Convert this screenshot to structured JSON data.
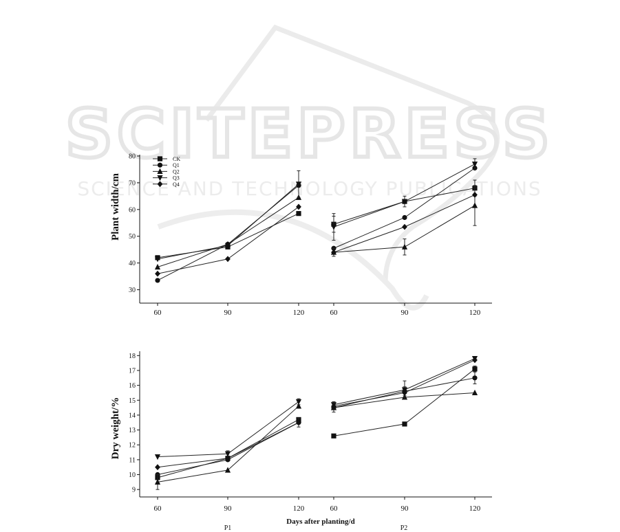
{
  "watermark": {
    "title": "SCITEPRESS",
    "subtitle": "SCIENCE AND TECHNOLOGY PUBLICATIONS"
  },
  "legend": [
    "CK",
    "Q1",
    "Q2",
    "Q3",
    "Q4"
  ],
  "panel_labels": [
    "P1",
    "P2"
  ],
  "x_axis_title": "Days after planting/d",
  "chart_data": [
    {
      "type": "line",
      "ylabel": "Plant width/cm",
      "ylim": [
        25,
        80
      ],
      "yticks": [
        30,
        40,
        50,
        60,
        70,
        80
      ],
      "groups": [
        {
          "name": "P1",
          "x": [
            60,
            90,
            120
          ],
          "series": [
            {
              "name": "CK",
              "marker": "square",
              "values": [
                42.0,
                46.0,
                58.5
              ],
              "errors": [
                0,
                0,
                0
              ]
            },
            {
              "name": "Q1",
              "marker": "circle",
              "values": [
                33.5,
                47.0,
                69.0
              ],
              "errors": [
                0,
                0,
                0
              ]
            },
            {
              "name": "Q2",
              "marker": "triangle",
              "values": [
                38.5,
                47.0,
                64.5
              ],
              "errors": [
                0,
                0,
                0
              ]
            },
            {
              "name": "Q3",
              "marker": "tri-down",
              "values": [
                41.5,
                46.5,
                69.5
              ],
              "errors": [
                0,
                0,
                5
              ]
            },
            {
              "name": "Q4",
              "marker": "diamond",
              "values": [
                36.0,
                41.5,
                61.0
              ],
              "errors": [
                0,
                0,
                0
              ]
            }
          ]
        },
        {
          "name": "P2",
          "x": [
            60,
            90,
            120
          ],
          "series": [
            {
              "name": "CK",
              "marker": "square",
              "values": [
                54.5,
                63.0,
                68.0
              ],
              "errors": [
                3,
                0,
                3
              ]
            },
            {
              "name": "Q1",
              "marker": "circle",
              "values": [
                45.5,
                57.0,
                75.5
              ],
              "errors": [
                0,
                0,
                0
              ]
            },
            {
              "name": "Q2",
              "marker": "triangle",
              "values": [
                44.0,
                46.0,
                61.5
              ],
              "errors": [
                0,
                3,
                7.5
              ]
            },
            {
              "name": "Q3",
              "marker": "tri-down",
              "values": [
                53.5,
                63.0,
                77.0
              ],
              "errors": [
                5,
                2,
                2
              ]
            },
            {
              "name": "Q4",
              "marker": "diamond",
              "values": [
                44.0,
                53.5,
                65.5
              ],
              "errors": [
                1.5,
                0,
                0
              ]
            }
          ]
        }
      ],
      "x_ticks": [
        "60",
        "90",
        "120"
      ]
    },
    {
      "type": "line",
      "ylabel": "Dry weight/%",
      "ylim": [
        8.5,
        18.2
      ],
      "yticks": [
        9,
        10,
        11,
        12,
        13,
        14,
        15,
        16,
        17,
        18
      ],
      "groups": [
        {
          "name": "P1",
          "x": [
            60,
            90,
            120
          ],
          "series": [
            {
              "name": "CK",
              "marker": "square",
              "values": [
                9.8,
                11.1,
                13.7
              ],
              "errors": [
                0,
                0,
                0
              ]
            },
            {
              "name": "Q1",
              "marker": "circle",
              "values": [
                10.0,
                11.0,
                13.5
              ],
              "errors": [
                0,
                0,
                0
              ]
            },
            {
              "name": "Q2",
              "marker": "triangle",
              "values": [
                9.5,
                10.3,
                14.6
              ],
              "errors": [
                0.5,
                0,
                0
              ]
            },
            {
              "name": "Q3",
              "marker": "tri-down",
              "values": [
                11.2,
                11.4,
                14.9
              ],
              "errors": [
                0,
                0.2,
                0.2
              ]
            },
            {
              "name": "Q4",
              "marker": "diamond",
              "values": [
                10.5,
                11.1,
                13.5
              ],
              "errors": [
                0,
                0,
                0.3
              ]
            }
          ]
        },
        {
          "name": "P2",
          "x": [
            60,
            90,
            120
          ],
          "series": [
            {
              "name": "CK",
              "marker": "square",
              "values": [
                12.6,
                13.4,
                17.1
              ],
              "errors": [
                0.1,
                0,
                0.2
              ]
            },
            {
              "name": "Q1",
              "marker": "circle",
              "values": [
                14.5,
                15.6,
                16.5
              ],
              "errors": [
                0.3,
                0.3,
                0.4
              ]
            },
            {
              "name": "Q2",
              "marker": "triangle",
              "values": [
                14.5,
                15.2,
                15.5
              ],
              "errors": [
                0,
                0,
                0
              ]
            },
            {
              "name": "Q3",
              "marker": "tri-down",
              "values": [
                14.7,
                15.7,
                17.8
              ],
              "errors": [
                0.2,
                0.6,
                0
              ]
            },
            {
              "name": "Q4",
              "marker": "diamond",
              "values": [
                14.6,
                15.5,
                17.7
              ],
              "errors": [
                0.2,
                0,
                0
              ]
            }
          ]
        }
      ],
      "x_ticks": [
        "60",
        "90",
        "120"
      ]
    }
  ]
}
